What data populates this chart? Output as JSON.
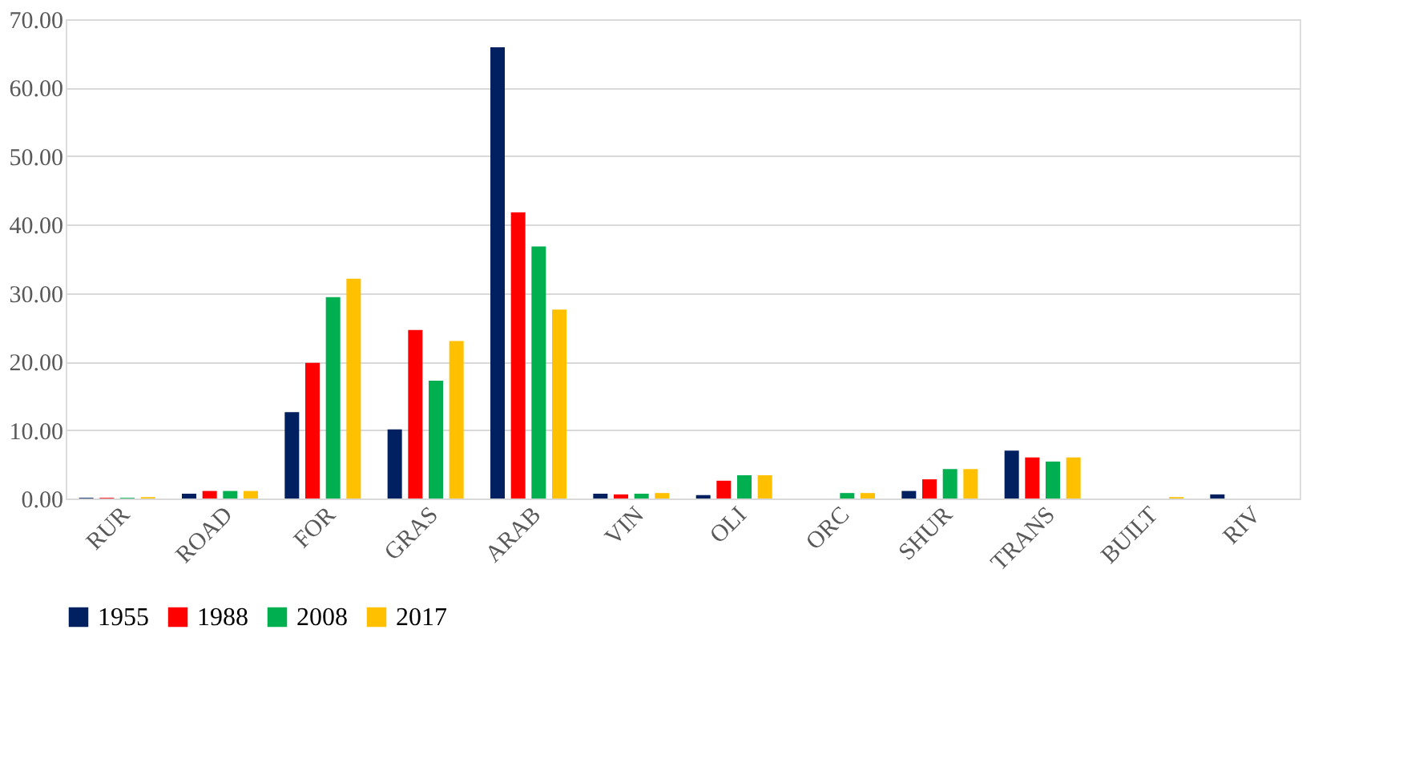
{
  "chart_data": {
    "type": "bar",
    "categories": [
      "RUR",
      "ROAD",
      "FOR",
      "GRAS",
      "ARAB",
      "VIN",
      "OLI",
      "ORC",
      "SHUR",
      "TRANS",
      "BUILT",
      "RIV"
    ],
    "series": [
      {
        "name": "1955",
        "color": "#002060",
        "values": [
          0.1,
          0.7,
          12.6,
          10.1,
          65.9,
          0.7,
          0.5,
          0.0,
          1.1,
          7.0,
          0.0,
          0.6
        ]
      },
      {
        "name": "1988",
        "color": "#ff0000",
        "values": [
          0.1,
          1.1,
          19.8,
          24.6,
          41.8,
          0.6,
          2.6,
          0.0,
          2.8,
          6.0,
          0.0,
          0.0
        ]
      },
      {
        "name": "2008",
        "color": "#00b050",
        "values": [
          0.1,
          1.1,
          29.4,
          17.2,
          36.8,
          0.7,
          3.4,
          0.8,
          4.3,
          5.4,
          0.0,
          0.0
        ]
      },
      {
        "name": "2017",
        "color": "#ffc000",
        "values": [
          0.2,
          1.1,
          32.1,
          23.0,
          27.6,
          0.8,
          3.4,
          0.8,
          4.3,
          6.0,
          0.2,
          0.0
        ]
      }
    ],
    "ylim": [
      0,
      70
    ],
    "yticks": [
      {
        "value": 0,
        "label": "0.00"
      },
      {
        "value": 10,
        "label": "10.00"
      },
      {
        "value": 20,
        "label": "20.00"
      },
      {
        "value": 30,
        "label": "30.00"
      },
      {
        "value": 40,
        "label": "40.00"
      },
      {
        "value": 50,
        "label": "50.00"
      },
      {
        "value": 60,
        "label": "60.00"
      },
      {
        "value": 70,
        "label": "70.00"
      }
    ],
    "grid": "y",
    "legend": "bottom"
  }
}
